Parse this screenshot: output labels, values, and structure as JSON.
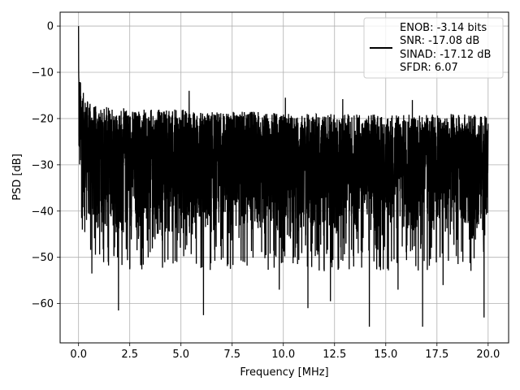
{
  "chart_data": {
    "type": "line",
    "title": "",
    "xlabel": "Frequency [MHz]",
    "ylabel": "PSD [dB]",
    "xlim": [
      -0.9,
      21.0
    ],
    "ylim": [
      -68.5,
      3.0
    ],
    "xticks": [
      0.0,
      2.5,
      5.0,
      7.5,
      10.0,
      12.5,
      15.0,
      17.5,
      20.0
    ],
    "xtick_labels": [
      "0.0",
      "2.5",
      "5.0",
      "7.5",
      "10.0",
      "12.5",
      "15.0",
      "17.5",
      "20.0"
    ],
    "yticks": [
      0,
      -10,
      -20,
      -30,
      -40,
      -50,
      -60
    ],
    "ytick_labels": [
      "0",
      "−10",
      "−20",
      "−30",
      "−40",
      "−50",
      "−60"
    ],
    "grid": true,
    "legend_position": "upper-right",
    "legend_lines": [
      "ENOB: -3.14 bits",
      "SNR: -17.08 dB",
      "SINAD: -17.12 dB",
      "SFDR: 6.07"
    ],
    "line_color": "#000000",
    "series": [
      {
        "x": [
          0.0,
          0.02,
          0.05,
          0.1,
          0.15,
          0.2,
          0.3,
          0.5,
          0.7,
          1.0,
          1.5,
          2.0,
          2.5,
          3.0,
          4.0,
          5.0,
          6.0,
          7.0,
          8.0,
          9.0,
          10.0,
          11.0,
          12.0,
          13.0,
          14.0,
          15.0,
          16.0,
          17.0,
          18.0,
          19.0,
          20.0
        ],
        "y_upper": [
          0,
          -7,
          -10,
          -12,
          -13,
          -14,
          -15,
          -16.5,
          -17,
          -17.5,
          -17.5,
          -17.5,
          -18,
          -18,
          -18,
          -18,
          -18.5,
          -18.5,
          -18.5,
          -18.5,
          -19,
          -19,
          -19,
          -19,
          -19,
          -19,
          -19,
          -19,
          -19,
          -19,
          -19.5
        ],
        "y_lower": [
          -35,
          -36,
          -37,
          -38,
          -40,
          -41,
          -43,
          -44,
          -45,
          -46,
          -46,
          -47,
          -47,
          -47,
          -47,
          -47,
          -47,
          -47,
          -47,
          -47,
          -47,
          -47,
          -47,
          -47,
          -47,
          -47,
          -47,
          -47,
          -47,
          -47,
          -47
        ],
        "dips": [
          {
            "x": 0.65,
            "y": -53.5
          },
          {
            "x": 1.45,
            "y": -51
          },
          {
            "x": 1.95,
            "y": -61.5
          },
          {
            "x": 3.4,
            "y": -50
          },
          {
            "x": 4.8,
            "y": -51
          },
          {
            "x": 6.1,
            "y": -62.5
          },
          {
            "x": 7.3,
            "y": -51.5
          },
          {
            "x": 9.8,
            "y": -57
          },
          {
            "x": 11.2,
            "y": -61
          },
          {
            "x": 12.3,
            "y": -59.5
          },
          {
            "x": 14.2,
            "y": -65
          },
          {
            "x": 15.6,
            "y": -57
          },
          {
            "x": 16.8,
            "y": -65
          },
          {
            "x": 17.8,
            "y": -56
          },
          {
            "x": 19.8,
            "y": -63
          }
        ],
        "peaks": [
          {
            "x": 5.4,
            "y": -14
          },
          {
            "x": 10.1,
            "y": -15.5
          },
          {
            "x": 12.9,
            "y": -15.8
          },
          {
            "x": 16.3,
            "y": -16
          }
        ]
      }
    ]
  }
}
